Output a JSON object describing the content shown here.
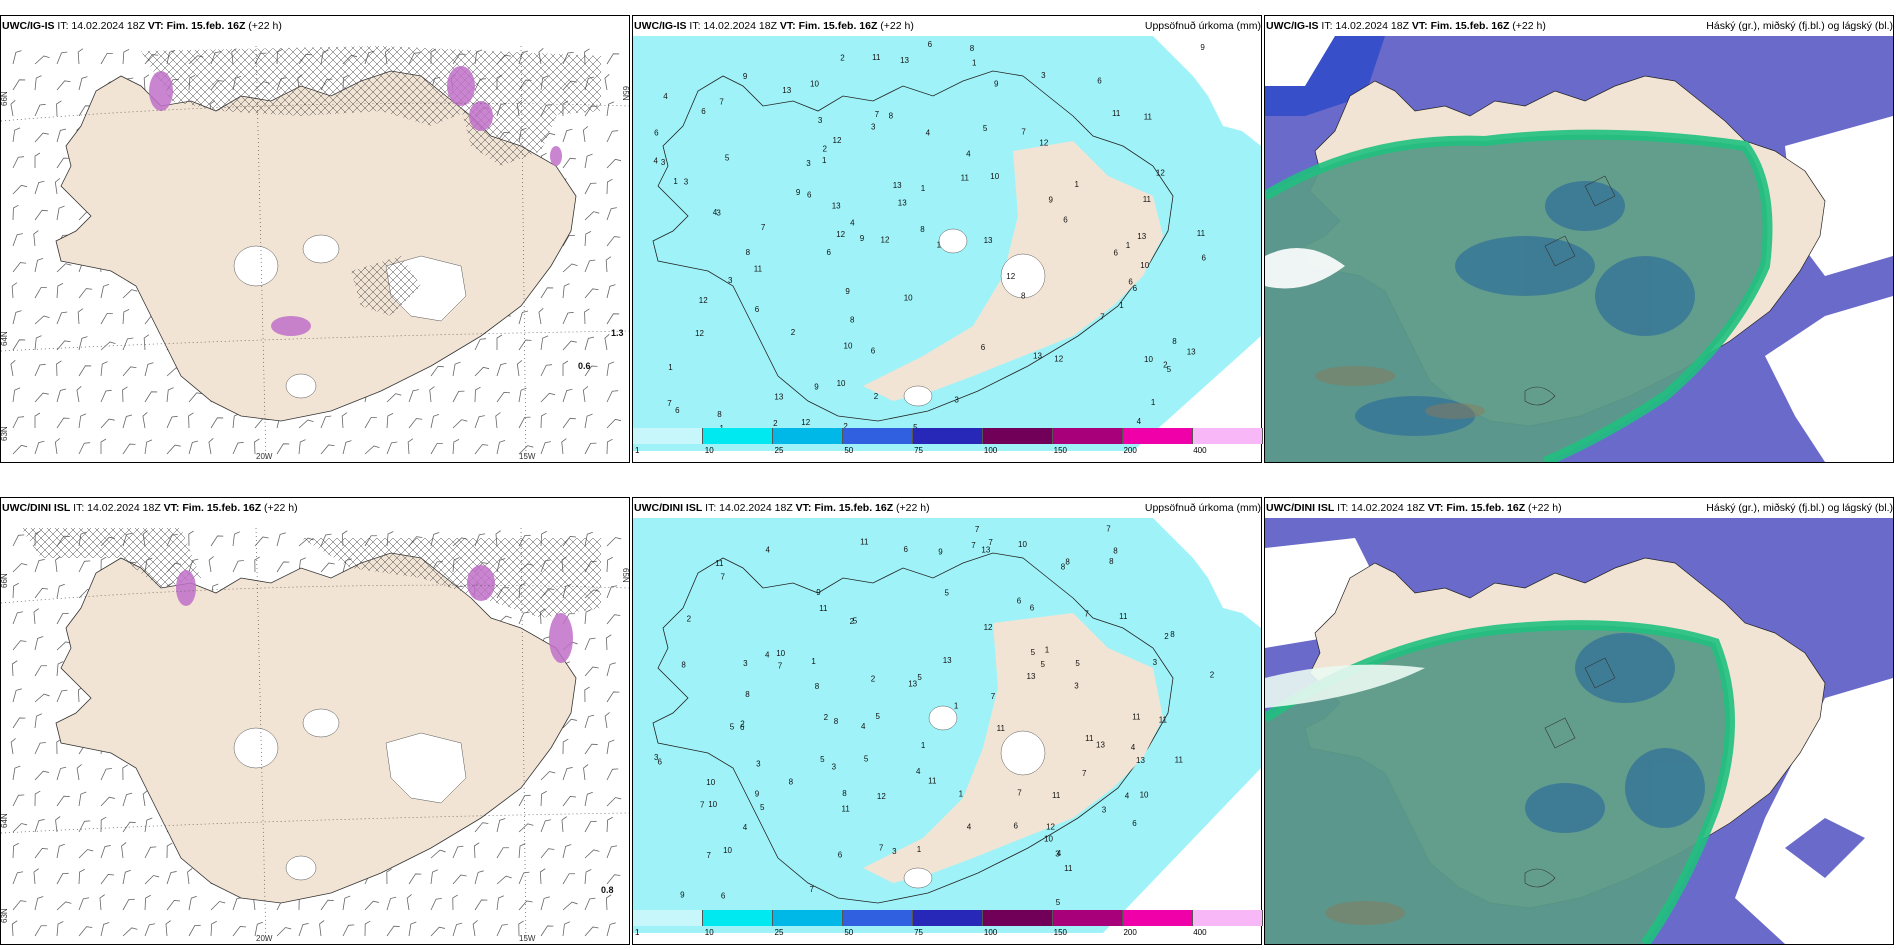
{
  "top_row": {
    "panel1": {
      "model": "UWC/IG-IS",
      "it": "IT: 14.02.2024 18Z",
      "vt_label": "VT:",
      "vt": "Fim. 15.feb. 16Z",
      "lead": "(+22 h)",
      "right": ""
    },
    "panel2": {
      "model": "UWC/IG-IS",
      "it": "IT: 14.02.2024 18Z",
      "vt_label": "VT:",
      "vt": "Fim. 15.feb. 16Z",
      "lead": "(+22 h)",
      "right": "Uppsöfnuð úrkoma (mm)"
    },
    "panel3": {
      "model": "UWC/IG-IS",
      "it": "IT: 14.02.2024 18Z",
      "vt_label": "VT:",
      "vt": "Fim. 15.feb. 16Z",
      "lead": "(+22 h)",
      "right": "Háský (gr.), miðský (fj.bl.) og lágský (bl.)"
    }
  },
  "bottom_row": {
    "panel1": {
      "model": "UWC/DINI ISL",
      "it": "IT: 14.02.2024 18Z",
      "vt_label": "VT:",
      "vt": "Fim. 15.feb. 16Z",
      "lead": "(+22 h)",
      "right": ""
    },
    "panel2": {
      "model": "UWC/DINI ISL",
      "it": "IT: 14.02.2024 18Z",
      "vt_label": "VT:",
      "vt": "Fim. 15.feb. 16Z",
      "lead": "(+22 h)",
      "right": "Uppsöfnuð úrkoma (mm)"
    },
    "panel3": {
      "model": "UWC/DINI ISL",
      "it": "IT: 14.02.2024 18Z",
      "vt_label": "VT:",
      "vt": "Fim. 15.feb. 16Z",
      "lead": "(+22 h)",
      "right": "Háský (gr.), miðský (fj.bl.) og lágský (bl.)"
    }
  },
  "axis_labels": {
    "lon_20w": "20W",
    "lon_15w": "15W",
    "lat_66n": "66N",
    "lat_64n": "64N",
    "lat_65n": "65N",
    "lat_63n": "63N"
  },
  "point_values": {
    "top_a": "1.3",
    "top_b": "0.6",
    "bottom_a": "0.8"
  },
  "colorbar": {
    "ticks": [
      "1",
      "10",
      "25",
      "50",
      "75",
      "100",
      "150",
      "200",
      "400"
    ],
    "colors": [
      "#c8f7fb",
      "#00e8f0",
      "#00b8e8",
      "#3060e0",
      "#2828b8",
      "#700058",
      "#a8007a",
      "#f000a8",
      "#f8b8f8"
    ]
  },
  "colors": {
    "land": "#f2e4d4",
    "precip": "#9ff3f8",
    "cloud_high": "#6a6acb",
    "cloud_mid": "#5b9a88",
    "cloud_low": "#20c080",
    "snow": "#c8a0d8"
  }
}
